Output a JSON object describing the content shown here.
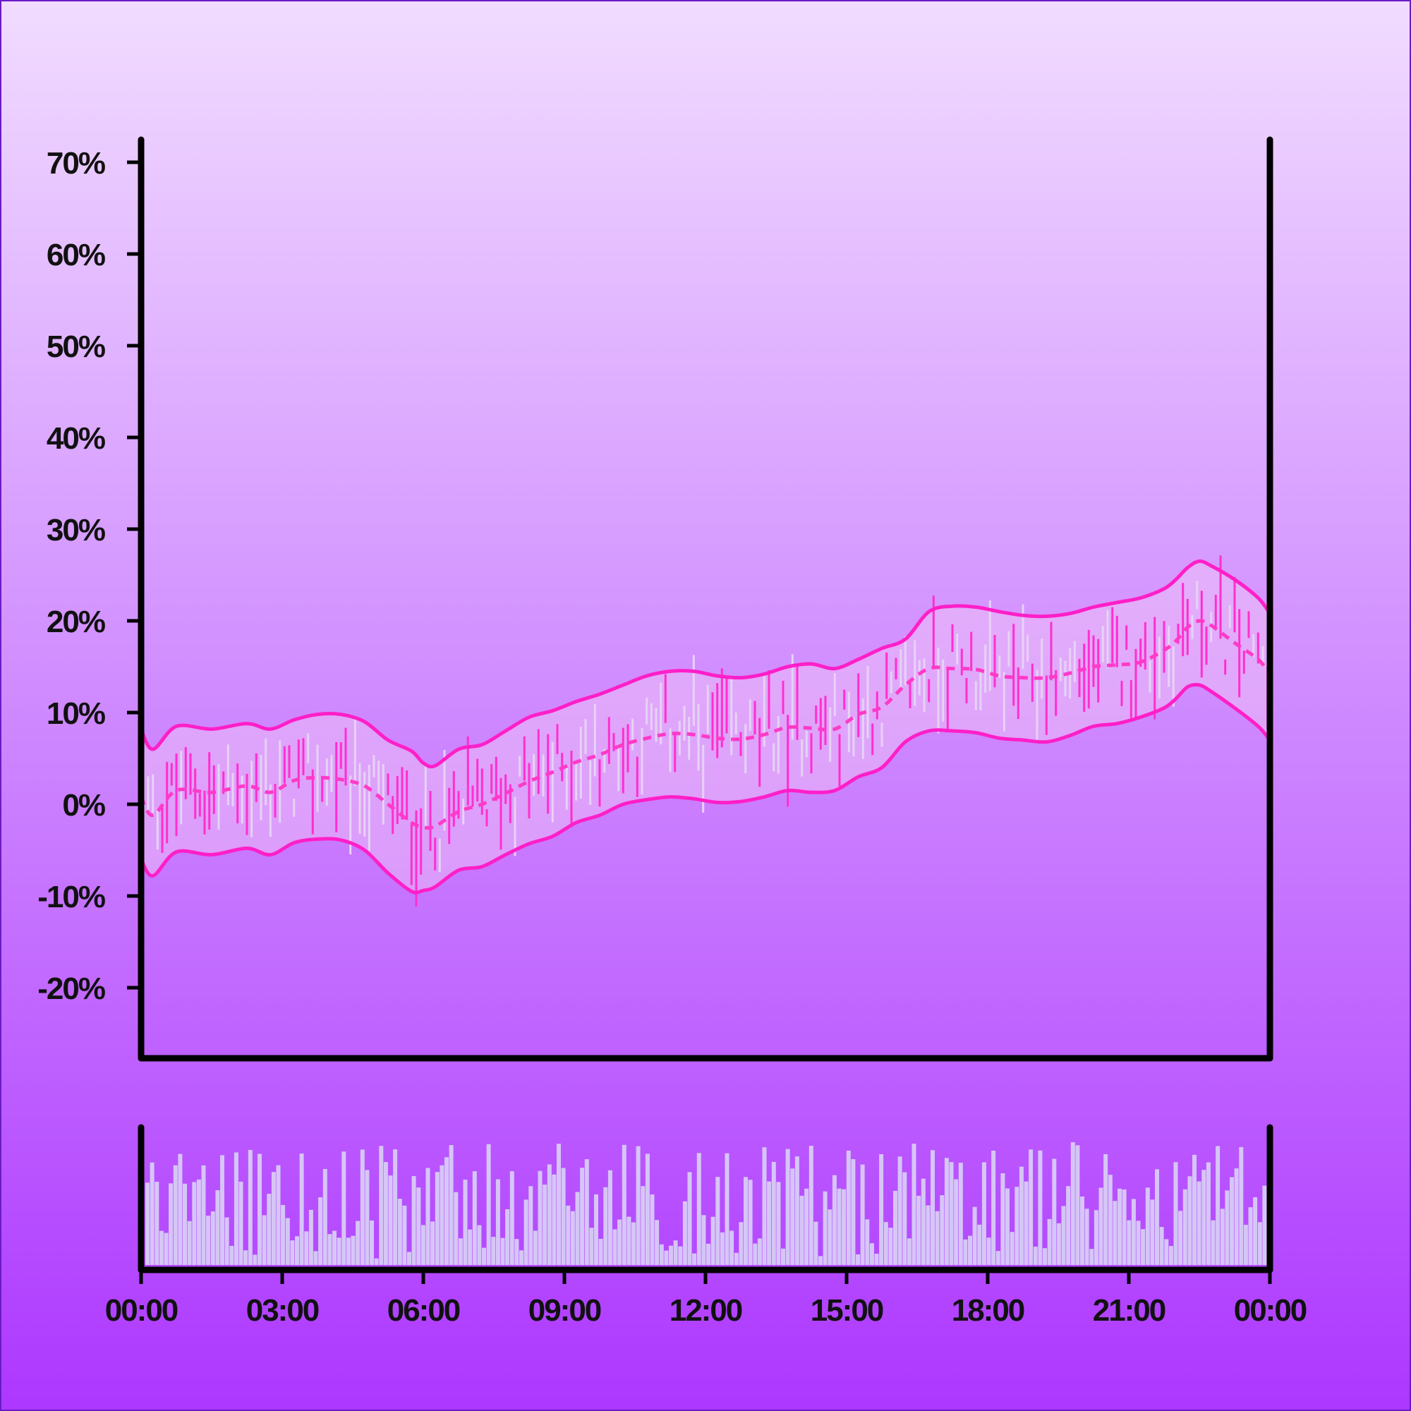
{
  "colors": {
    "background_top": "#f1dcff",
    "background_bottom": "#ad37ff",
    "frame": "#6a1bc4",
    "axis": "#000000",
    "band": "#ff1fc8",
    "mid": "#ff3ac8",
    "bar_up": "#e6d3f5",
    "bar_down": "#ff2fcf",
    "volume": "#d6c6f7"
  },
  "chart_data": {
    "type": "line",
    "x_axis": {
      "type": "time",
      "range": [
        "00:00",
        "24:00"
      ],
      "tick_labels": [
        "00:00",
        "03:00",
        "06:00",
        "09:00",
        "12:00",
        "15:00",
        "18:00",
        "21:00",
        "00:00"
      ]
    },
    "y_axis": {
      "unit": "%",
      "range": [
        -27,
        73
      ],
      "ticks": [
        70,
        60,
        50,
        40,
        30,
        20,
        10,
        0,
        -10,
        -20
      ],
      "tick_labels": [
        "70%",
        "60%",
        "50%",
        "40%",
        "30%",
        "20%",
        "10%",
        "0%",
        "-10%",
        "-20%"
      ]
    },
    "grid": false,
    "legend": "none",
    "series": [
      {
        "role": "upper_band",
        "x": [
          "00:00",
          "00:15",
          "00:45",
          "01:30",
          "02:15",
          "02:45",
          "03:15",
          "03:45",
          "04:15",
          "04:45",
          "05:15",
          "05:45",
          "06:00",
          "06:15",
          "06:45",
          "07:15",
          "07:45",
          "08:15",
          "08:45",
          "09:15",
          "09:45",
          "10:15",
          "10:45",
          "11:15",
          "11:45",
          "12:15",
          "12:45",
          "13:15",
          "13:45",
          "14:15",
          "14:45",
          "15:15",
          "15:45",
          "16:15",
          "16:45",
          "17:15",
          "17:45",
          "18:15",
          "18:45",
          "19:15",
          "19:45",
          "20:15",
          "20:45",
          "21:15",
          "21:45",
          "22:00",
          "22:15",
          "22:30",
          "22:45",
          "23:15",
          "23:45",
          "24:00"
        ],
        "y": [
          8.2,
          6.0,
          8.5,
          8.2,
          8.8,
          8.2,
          9.2,
          9.8,
          9.8,
          9.0,
          7.0,
          5.8,
          4.5,
          4.2,
          6.0,
          6.5,
          8.0,
          9.5,
          10.2,
          11.2,
          12.0,
          13.0,
          14.0,
          14.5,
          14.5,
          14.0,
          13.8,
          14.2,
          15.0,
          15.3,
          14.8,
          15.8,
          17.0,
          18.0,
          21.0,
          21.6,
          21.5,
          21.0,
          20.6,
          20.5,
          20.8,
          21.5,
          22.0,
          22.5,
          23.5,
          24.5,
          25.8,
          26.5,
          26.0,
          24.5,
          22.5,
          20.8
        ]
      },
      {
        "role": "middle_band",
        "x": [
          "00:00",
          "00:15",
          "00:45",
          "01:30",
          "02:15",
          "02:45",
          "03:15",
          "03:45",
          "04:15",
          "04:45",
          "05:15",
          "05:45",
          "06:00",
          "06:15",
          "06:45",
          "07:15",
          "07:45",
          "08:15",
          "08:45",
          "09:15",
          "09:45",
          "10:15",
          "10:45",
          "11:15",
          "11:45",
          "12:15",
          "12:45",
          "13:15",
          "13:45",
          "14:15",
          "14:45",
          "15:15",
          "15:45",
          "16:15",
          "16:45",
          "17:15",
          "17:45",
          "18:15",
          "18:45",
          "19:15",
          "19:45",
          "20:15",
          "20:45",
          "21:15",
          "21:45",
          "22:00",
          "22:15",
          "22:30",
          "22:45",
          "23:15",
          "23:45",
          "24:00"
        ],
        "y": [
          0.8,
          -1.2,
          1.5,
          1.3,
          2.0,
          1.3,
          2.6,
          2.9,
          2.7,
          2.0,
          0.0,
          -2.0,
          -2.5,
          -2.4,
          -0.8,
          0.0,
          1.2,
          2.5,
          3.5,
          4.6,
          5.4,
          6.5,
          7.2,
          7.7,
          7.6,
          7.2,
          7.1,
          7.6,
          8.4,
          8.3,
          8.2,
          9.8,
          10.6,
          13.0,
          14.8,
          14.8,
          14.7,
          14.0,
          13.8,
          13.8,
          14.3,
          15.0,
          15.2,
          15.5,
          16.8,
          17.8,
          19.3,
          20.0,
          19.5,
          17.6,
          15.8,
          14.2
        ]
      },
      {
        "role": "lower_band",
        "x": [
          "00:00",
          "00:15",
          "00:45",
          "01:30",
          "02:15",
          "02:45",
          "03:15",
          "03:45",
          "04:15",
          "04:45",
          "05:15",
          "05:45",
          "06:00",
          "06:15",
          "06:45",
          "07:15",
          "07:45",
          "08:15",
          "08:45",
          "09:15",
          "09:45",
          "10:15",
          "10:45",
          "11:15",
          "11:45",
          "12:15",
          "12:45",
          "13:15",
          "13:45",
          "14:15",
          "14:45",
          "15:15",
          "15:45",
          "16:15",
          "16:45",
          "17:15",
          "17:45",
          "18:15",
          "18:45",
          "19:15",
          "19:45",
          "20:15",
          "20:45",
          "21:15",
          "21:45",
          "22:00",
          "22:15",
          "22:30",
          "22:45",
          "23:15",
          "23:45",
          "24:00"
        ],
        "y": [
          -6.0,
          -7.8,
          -5.2,
          -5.5,
          -4.8,
          -5.5,
          -4.2,
          -3.8,
          -3.9,
          -5.0,
          -7.5,
          -9.5,
          -9.4,
          -9.0,
          -7.2,
          -6.8,
          -5.5,
          -4.3,
          -3.5,
          -2.0,
          -1.2,
          0.0,
          0.5,
          0.8,
          0.6,
          0.2,
          0.3,
          0.8,
          1.5,
          1.3,
          1.5,
          3.0,
          4.0,
          6.8,
          8.0,
          8.0,
          7.8,
          7.2,
          7.0,
          6.8,
          7.5,
          8.5,
          8.8,
          9.5,
          10.5,
          11.5,
          12.8,
          13.0,
          12.3,
          10.5,
          8.5,
          7.0
        ]
      }
    ],
    "price_bars": {
      "count": 240,
      "description": "ranges (high/low) distributed around the middle band",
      "sample_range_pct": [
        -9.5,
        28.8
      ]
    },
    "volume": {
      "type": "bar",
      "count": 240,
      "relative_range": [
        0.05,
        1.0
      ]
    }
  }
}
